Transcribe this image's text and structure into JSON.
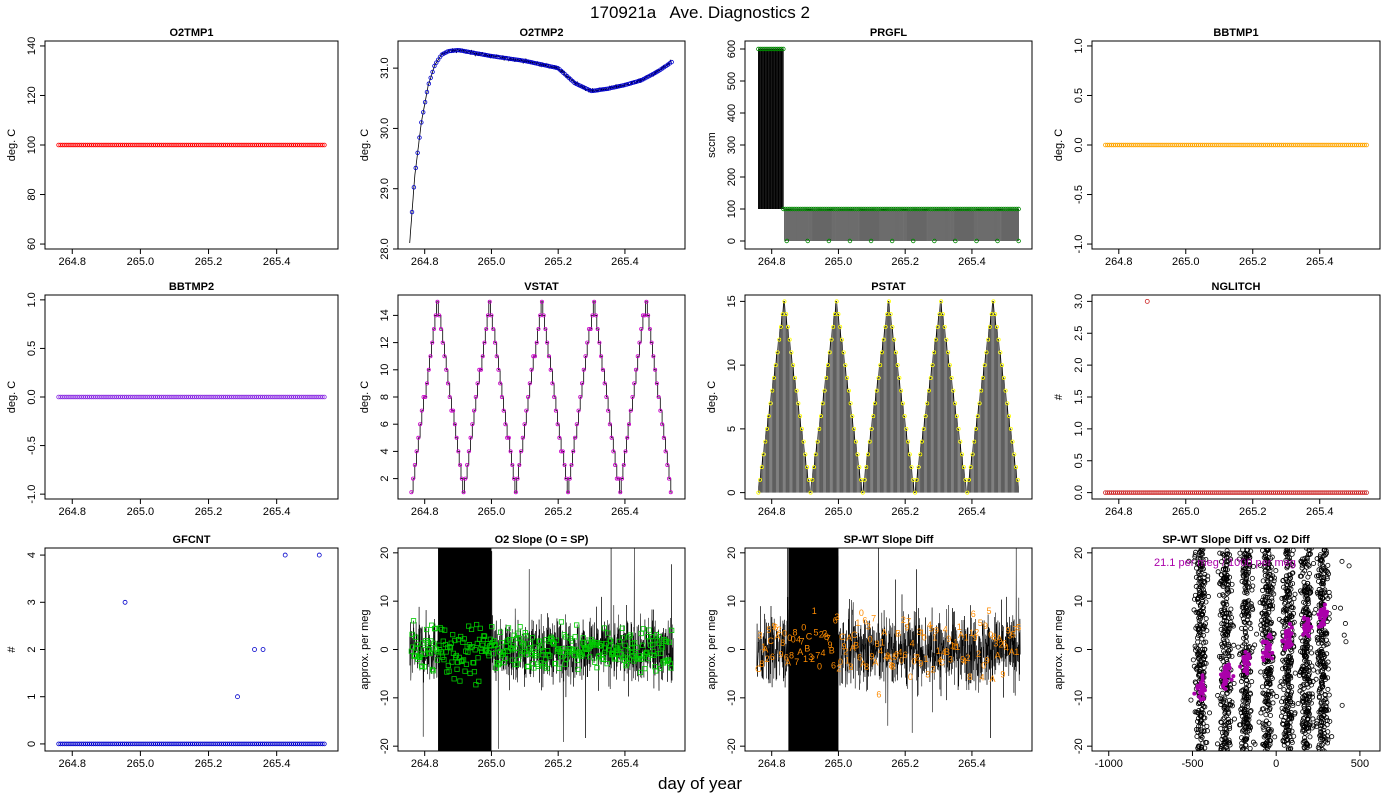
{
  "title": "170921a   Ave. Diagnostics 2",
  "xlabel": "day of year",
  "chart_data": [
    {
      "id": "o2tmp1",
      "type": "scatter",
      "title": "O2TMP1",
      "ylabel": "deg. C",
      "xlim": [
        264.72,
        265.58
      ],
      "ylim": [
        58,
        142
      ],
      "xticks": [
        264.8,
        265.0,
        265.2,
        265.4
      ],
      "xticklabels": [
        "264.8",
        "265.0",
        "265.2",
        "265.4"
      ],
      "yticks": [
        60,
        80,
        100,
        120,
        140
      ],
      "yticklabels": [
        "60",
        "80",
        "100",
        "120",
        "140"
      ],
      "x_start": 264.76,
      "x_end": 265.54,
      "n": 130,
      "constant": 100,
      "color": "#ff0000",
      "marker": "circle"
    },
    {
      "id": "o2tmp2",
      "type": "line",
      "title": "O2TMP2",
      "ylabel": "deg. C",
      "xlim": [
        264.72,
        265.58
      ],
      "ylim": [
        28.0,
        31.45
      ],
      "xticks": [
        264.8,
        265.0,
        265.2,
        265.4
      ],
      "xticklabels": [
        "264.8",
        "265.0",
        "265.2",
        "265.4"
      ],
      "yticks": [
        28.0,
        29.0,
        30.0,
        31.0
      ],
      "yticklabels": [
        "28.0",
        "29.0",
        "30.0",
        "31.0"
      ],
      "x": [
        264.755,
        264.77,
        264.79,
        264.81,
        264.83,
        264.85,
        264.87,
        264.9,
        264.95,
        265.0,
        265.1,
        265.2,
        265.25,
        265.3,
        265.35,
        265.4,
        265.45,
        265.5,
        265.54
      ],
      "y": [
        28.1,
        29.2,
        30.1,
        30.7,
        31.05,
        31.22,
        31.28,
        31.3,
        31.25,
        31.2,
        31.12,
        31.0,
        30.75,
        30.62,
        30.66,
        30.72,
        30.8,
        30.95,
        31.1
      ],
      "color": "#0000cc",
      "marker": "circle"
    },
    {
      "id": "prgfl",
      "type": "line",
      "title": "PRGFL",
      "ylabel": "sccm",
      "xlim": [
        264.72,
        265.58
      ],
      "ylim": [
        -25,
        625
      ],
      "xticks": [
        264.8,
        265.0,
        265.2,
        265.4
      ],
      "xticklabels": [
        "264.8",
        "265.0",
        "265.2",
        "265.4"
      ],
      "yticks": [
        0,
        100,
        200,
        300,
        400,
        500,
        600
      ],
      "yticklabels": [
        "0",
        "100",
        "200",
        "300",
        "400",
        "500",
        "600"
      ],
      "x_start": 264.76,
      "x_end": 265.54,
      "high_phase_end": 264.835,
      "high_value": 600,
      "low_value": 100,
      "mid_value": 0,
      "color": "#008800",
      "marker": "circle"
    },
    {
      "id": "bbtmp1",
      "type": "scatter",
      "title": "BBTMP1",
      "ylabel": "deg. C",
      "xlim": [
        264.72,
        265.58
      ],
      "ylim": [
        -1.05,
        1.05
      ],
      "xticks": [
        264.8,
        265.0,
        265.2,
        265.4
      ],
      "xticklabels": [
        "264.8",
        "265.0",
        "265.2",
        "265.4"
      ],
      "yticks": [
        -1.0,
        -0.5,
        0.0,
        0.5,
        1.0
      ],
      "yticklabels": [
        "-1.0",
        "-0.5",
        "0.0",
        "0.5",
        "1.0"
      ],
      "x_start": 264.76,
      "x_end": 265.54,
      "n": 130,
      "constant": 0,
      "color": "#ffa500",
      "marker": "circle"
    },
    {
      "id": "bbtmp2",
      "type": "scatter",
      "title": "BBTMP2",
      "ylabel": "deg. C",
      "xlim": [
        264.72,
        265.58
      ],
      "ylim": [
        -1.05,
        1.05
      ],
      "xticks": [
        264.8,
        265.0,
        265.2,
        265.4
      ],
      "xticklabels": [
        "264.8",
        "265.0",
        "265.2",
        "265.4"
      ],
      "yticks": [
        -1.0,
        -0.5,
        0.0,
        0.5,
        1.0
      ],
      "yticklabels": [
        "-1.0",
        "-0.5",
        "0.0",
        "0.5",
        "1.0"
      ],
      "x_start": 264.76,
      "x_end": 265.54,
      "n": 130,
      "constant": 0,
      "color": "#8a2be2",
      "marker": "circle"
    },
    {
      "id": "vstat",
      "type": "line",
      "title": "VSTAT",
      "ylabel": "deg. C",
      "xlim": [
        264.72,
        265.58
      ],
      "ylim": [
        0.5,
        15.5
      ],
      "xticks": [
        264.8,
        265.0,
        265.2,
        265.4
      ],
      "xticklabels": [
        "264.8",
        "265.0",
        "265.2",
        "265.4"
      ],
      "yticks": [
        2,
        4,
        6,
        8,
        10,
        12,
        14
      ],
      "yticklabels": [
        "2",
        "4",
        "6",
        "8",
        "10",
        "12",
        "14"
      ],
      "x_start": 264.76,
      "x_end": 265.54,
      "min": 1,
      "max": 15,
      "cycles": 5,
      "color": "#cc00cc",
      "marker": "circle"
    },
    {
      "id": "pstat",
      "type": "line",
      "title": "PSTAT",
      "ylabel": "deg. C",
      "xlim": [
        264.72,
        265.58
      ],
      "ylim": [
        -0.5,
        15.5
      ],
      "xticks": [
        264.8,
        265.0,
        265.2,
        265.4
      ],
      "xticklabels": [
        "264.8",
        "265.0",
        "265.2",
        "265.4"
      ],
      "yticks": [
        0,
        5,
        10,
        15
      ],
      "yticklabels": [
        "0",
        "5",
        "10",
        "15"
      ],
      "x_start": 264.76,
      "x_end": 265.54,
      "min": 0,
      "max": 15,
      "cycles": 5,
      "color": "#ffff00",
      "marker": "circle"
    },
    {
      "id": "nglitch",
      "type": "scatter",
      "title": "NGLITCH",
      "ylabel": "#",
      "xlim": [
        264.72,
        265.58
      ],
      "ylim": [
        -0.1,
        3.1
      ],
      "xticks": [
        264.8,
        265.0,
        265.2,
        265.4
      ],
      "xticklabels": [
        "264.8",
        "265.0",
        "265.2",
        "265.4"
      ],
      "yticks": [
        0.0,
        0.5,
        1.0,
        1.5,
        2.0,
        2.5,
        3.0
      ],
      "yticklabels": [
        "0.0",
        "0.5",
        "1.0",
        "1.5",
        "2.0",
        "2.5",
        "3.0"
      ],
      "x_start": 264.76,
      "x_end": 265.54,
      "n": 130,
      "constant": 0,
      "outliers": [
        {
          "x": 264.885,
          "y": 3
        }
      ],
      "color": "#cc2222",
      "marker": "circle"
    },
    {
      "id": "gfcnt",
      "type": "scatter",
      "title": "GFCNT",
      "ylabel": "#",
      "xlim": [
        264.72,
        265.58
      ],
      "ylim": [
        -0.15,
        4.15
      ],
      "xticks": [
        264.8,
        265.0,
        265.2,
        265.4
      ],
      "xticklabels": [
        "264.8",
        "265.0",
        "265.2",
        "265.4"
      ],
      "yticks": [
        0,
        1,
        2,
        3,
        4
      ],
      "yticklabels": [
        "0",
        "1",
        "2",
        "3",
        "4"
      ],
      "x_start": 264.76,
      "x_end": 265.54,
      "n": 130,
      "constant": 0,
      "outliers": [
        {
          "x": 264.955,
          "y": 3
        },
        {
          "x": 265.285,
          "y": 1
        },
        {
          "x": 265.335,
          "y": 2
        },
        {
          "x": 265.36,
          "y": 2
        },
        {
          "x": 265.425,
          "y": 4
        },
        {
          "x": 265.525,
          "y": 4
        }
      ],
      "color": "#0000cc",
      "marker": "circle"
    },
    {
      "id": "o2slope",
      "type": "line",
      "title": "O2 Slope (O = SP)",
      "ylabel": "approx. per meg",
      "xlim": [
        264.72,
        265.58
      ],
      "ylim": [
        -21,
        21
      ],
      "xticks": [
        264.8,
        265.0,
        265.2,
        265.4
      ],
      "xticklabels": [
        "264.8",
        "265.0",
        "265.2",
        "265.4"
      ],
      "yticks": [
        -20,
        -10,
        0,
        10,
        20
      ],
      "yticklabels": [
        "-20",
        "-10",
        "0",
        "10",
        "20"
      ],
      "x_start": 264.755,
      "x_end": 265.545,
      "dense_band": [
        264.84,
        265.0
      ],
      "noise_amplitude": 6,
      "points_color": "#00cc00",
      "marker": "square"
    },
    {
      "id": "spwt",
      "type": "line",
      "title": "SP-WT Slope Diff",
      "ylabel": "approx. per meg",
      "xlim": [
        264.72,
        265.58
      ],
      "ylim": [
        -21,
        21
      ],
      "xticks": [
        264.8,
        265.0,
        265.2,
        265.4
      ],
      "xticklabels": [
        "264.8",
        "265.0",
        "265.2",
        "265.4"
      ],
      "yticks": [
        -20,
        -10,
        0,
        10,
        20
      ],
      "yticklabels": [
        "-20",
        "-10",
        "0",
        "10",
        "20"
      ],
      "x_start": 264.755,
      "x_end": 265.545,
      "dense_band": [
        264.85,
        265.0
      ],
      "noise_amplitude": 7,
      "label_color": "#ff8c00",
      "label_chars": [
        "1",
        "2",
        "3",
        "4",
        "5",
        "6",
        "7",
        "8",
        "9",
        "A",
        "B",
        "C",
        "0"
      ]
    },
    {
      "id": "scatter",
      "type": "scatter",
      "title": "SP-WT Slope Diff vs. O2 Diff",
      "ylabel": "approx. per meg",
      "xlim": [
        -1100,
        620
      ],
      "ylim": [
        -21,
        21
      ],
      "xticks": [
        -1000,
        -500,
        0,
        500
      ],
      "xticklabels": [
        "-1000",
        "-500",
        "0",
        "500"
      ],
      "yticks": [
        -20,
        -10,
        0,
        10,
        20
      ],
      "yticklabels": [
        "-20",
        "-10",
        "0",
        "10",
        "20"
      ],
      "clusters": [
        -450,
        -300,
        -180,
        -50,
        70,
        180,
        280
      ],
      "fit_color": "#aa00aa",
      "annotation": "21.1 per meg / 1000 per meg",
      "annotation_color": "#aa00aa"
    }
  ]
}
